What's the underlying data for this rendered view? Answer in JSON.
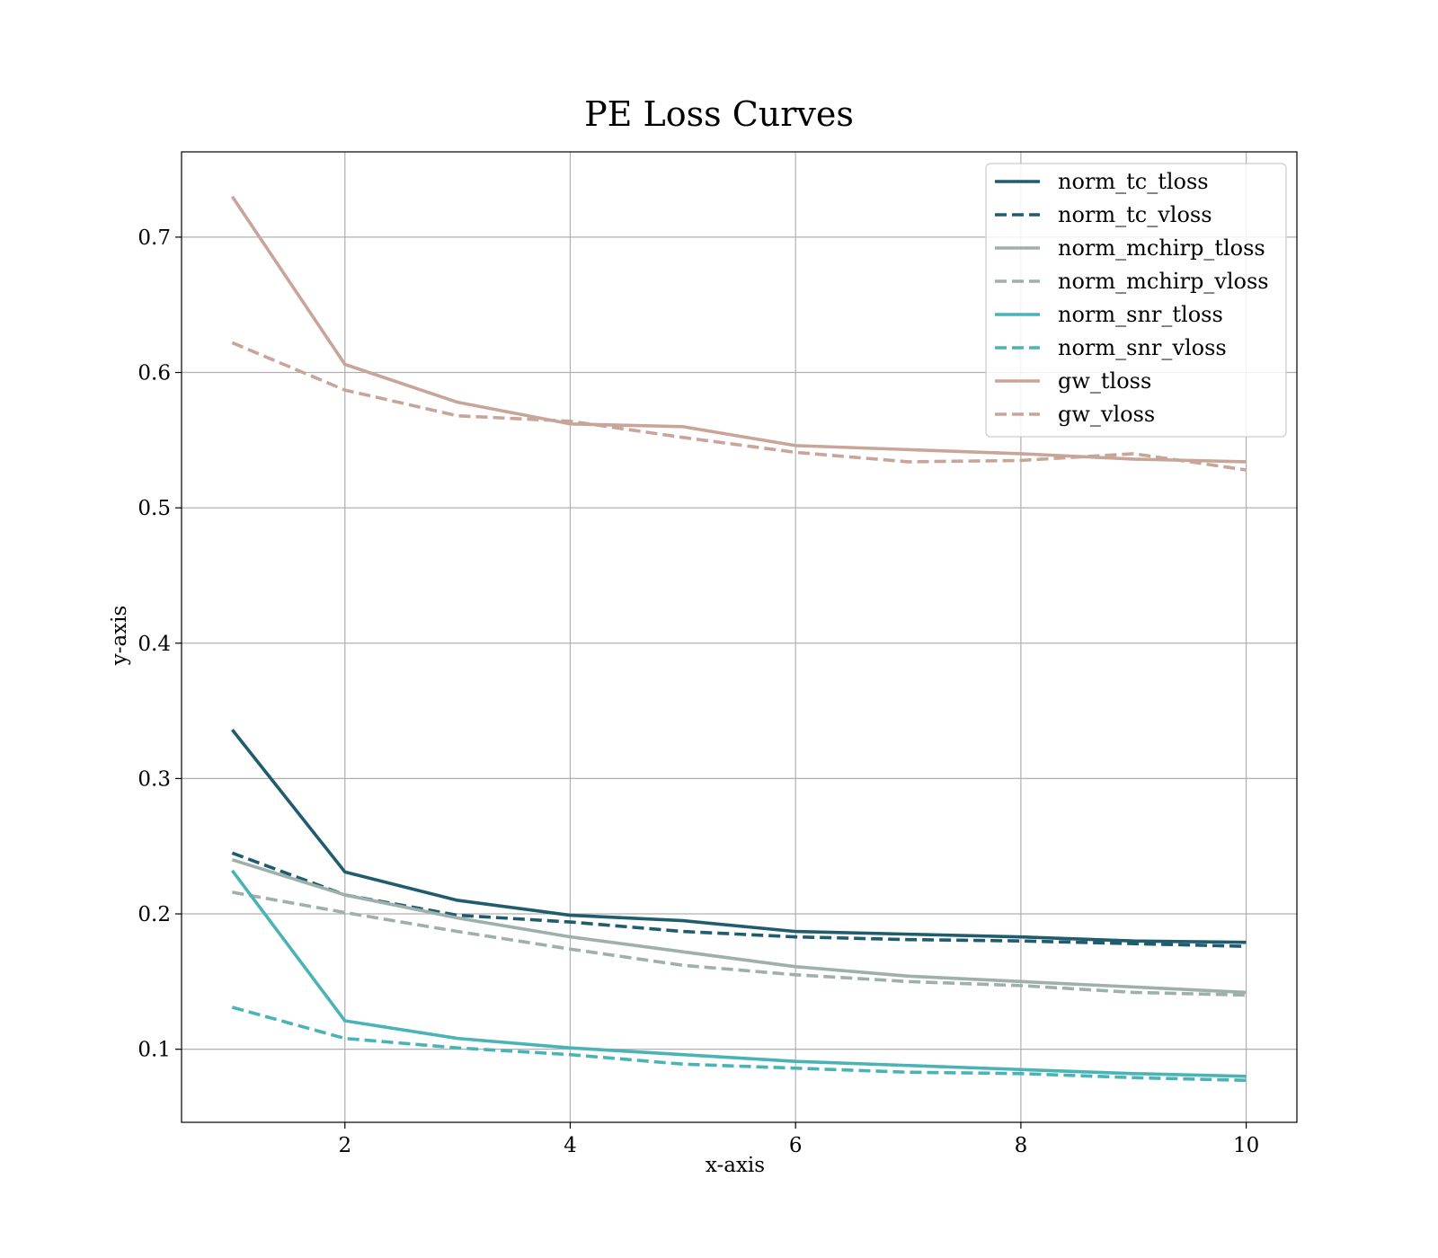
{
  "chart_data": {
    "type": "line",
    "title": "PE Loss Curves",
    "xlabel": "x-axis",
    "ylabel": "y-axis",
    "x": [
      1,
      2,
      3,
      4,
      5,
      6,
      7,
      8,
      9,
      10
    ],
    "xlim": [
      0.55,
      10.45
    ],
    "ylim": [
      0.046,
      0.763
    ],
    "xticks": [
      2,
      4,
      6,
      8,
      10
    ],
    "yticks": [
      0.1,
      0.2,
      0.3,
      0.4,
      0.5,
      0.6,
      0.7
    ],
    "grid": true,
    "legend_position": "top-right",
    "series": [
      {
        "name": "norm_tc_tloss",
        "color": "#1f5c6e",
        "style": "solid",
        "values": [
          0.336,
          0.231,
          0.21,
          0.199,
          0.195,
          0.187,
          0.185,
          0.183,
          0.18,
          0.179
        ]
      },
      {
        "name": "norm_tc_vloss",
        "color": "#1f5c6e",
        "style": "dashed",
        "values": [
          0.245,
          0.214,
          0.199,
          0.194,
          0.187,
          0.183,
          0.181,
          0.18,
          0.178,
          0.176
        ]
      },
      {
        "name": "norm_mchirp_tloss",
        "color": "#9db0ac",
        "style": "solid",
        "values": [
          0.24,
          0.214,
          0.197,
          0.183,
          0.172,
          0.161,
          0.154,
          0.15,
          0.146,
          0.142
        ]
      },
      {
        "name": "norm_mchirp_vloss",
        "color": "#9db0ac",
        "style": "dashed",
        "values": [
          0.216,
          0.201,
          0.187,
          0.174,
          0.162,
          0.155,
          0.15,
          0.147,
          0.142,
          0.14
        ]
      },
      {
        "name": "norm_snr_tloss",
        "color": "#4ab3b5",
        "style": "solid",
        "values": [
          0.232,
          0.121,
          0.108,
          0.101,
          0.096,
          0.091,
          0.088,
          0.085,
          0.082,
          0.08
        ]
      },
      {
        "name": "norm_snr_vloss",
        "color": "#4ab3b5",
        "style": "dashed",
        "values": [
          0.131,
          0.108,
          0.101,
          0.096,
          0.089,
          0.086,
          0.083,
          0.082,
          0.079,
          0.077
        ]
      },
      {
        "name": "gw_tloss",
        "color": "#c8a599",
        "style": "solid",
        "values": [
          0.73,
          0.606,
          0.578,
          0.562,
          0.56,
          0.546,
          0.543,
          0.54,
          0.536,
          0.534
        ]
      },
      {
        "name": "gw_vloss",
        "color": "#c8a599",
        "style": "dashed",
        "values": [
          0.622,
          0.587,
          0.568,
          0.564,
          0.552,
          0.541,
          0.534,
          0.535,
          0.54,
          0.528
        ]
      }
    ]
  }
}
